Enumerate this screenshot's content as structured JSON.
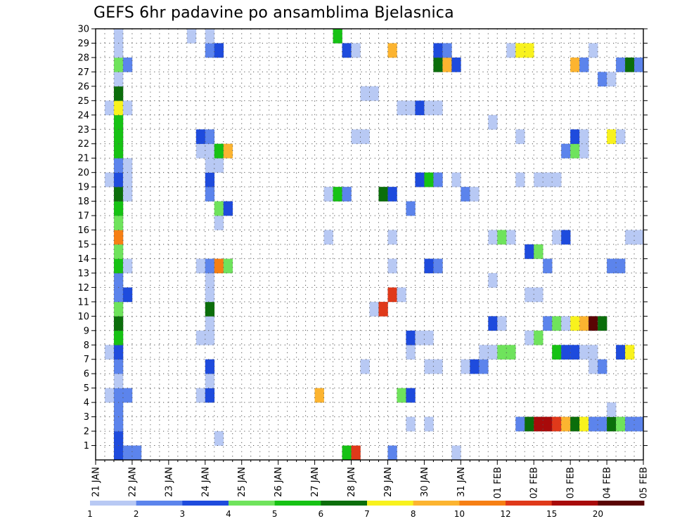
{
  "chart_data": {
    "type": "heatmap",
    "title": "GEFS 6hr padavine po ansamblima Bjelasnica",
    "x_ticks": [
      "21 JAN",
      "22 JAN",
      "23 JAN",
      "24 JAN",
      "25 JAN",
      "26 JAN",
      "27 JAN",
      "28 JAN",
      "29 JAN",
      "30 JAN",
      "31 JAN",
      "01 FEB",
      "02 FEB",
      "03 FEB",
      "04 FEB",
      "05 FEB"
    ],
    "x_range_steps": [
      0,
      60
    ],
    "x_step_hours": 6,
    "y_ticks": [
      1,
      2,
      3,
      4,
      5,
      6,
      7,
      8,
      9,
      10,
      11,
      12,
      13,
      14,
      15,
      16,
      17,
      18,
      19,
      20,
      21,
      22,
      23,
      24,
      25,
      26,
      27,
      28,
      29,
      30
    ],
    "y_range": [
      0,
      30
    ],
    "grid": "dotted",
    "colorbar": {
      "labels": [
        "1",
        "2",
        "3",
        "4",
        "5",
        "6",
        "7",
        "8",
        "10",
        "12",
        "15",
        "20"
      ],
      "colors": [
        "#b8c9f4",
        "#5c84ec",
        "#1e4bdd",
        "#6fe35c",
        "#16c214",
        "#0b6e0b",
        "#f8f21d",
        "#fcb430",
        "#f67f14",
        "#e0391a",
        "#a80a0a",
        "#5a0404"
      ]
    },
    "cells": [
      {
        "step": 2,
        "member": 0,
        "level": 2
      },
      {
        "step": 3,
        "member": 0,
        "level": 1
      },
      {
        "step": 4,
        "member": 0,
        "level": 1
      },
      {
        "step": 27,
        "member": 0,
        "level": 4
      },
      {
        "step": 28,
        "member": 0,
        "level": 9
      },
      {
        "step": 32,
        "member": 0,
        "level": 1
      },
      {
        "step": 39,
        "member": 0,
        "level": 0
      },
      {
        "step": 2,
        "member": 1,
        "level": 2
      },
      {
        "step": 13,
        "member": 1,
        "level": 0
      },
      {
        "step": 2,
        "member": 2,
        "level": 1
      },
      {
        "step": 34,
        "member": 2,
        "level": 0
      },
      {
        "step": 36,
        "member": 2,
        "level": 0
      },
      {
        "step": 46,
        "member": 2,
        "level": 1
      },
      {
        "step": 47,
        "member": 2,
        "level": 5
      },
      {
        "step": 48,
        "member": 2,
        "level": 10
      },
      {
        "step": 49,
        "member": 2,
        "level": 10
      },
      {
        "step": 50,
        "member": 2,
        "level": 9
      },
      {
        "step": 51,
        "member": 2,
        "level": 7
      },
      {
        "step": 52,
        "member": 2,
        "level": 5
      },
      {
        "step": 53,
        "member": 2,
        "level": 6
      },
      {
        "step": 54,
        "member": 2,
        "level": 1
      },
      {
        "step": 55,
        "member": 2,
        "level": 1
      },
      {
        "step": 56,
        "member": 2,
        "level": 5
      },
      {
        "step": 57,
        "member": 2,
        "level": 3
      },
      {
        "step": 58,
        "member": 2,
        "level": 1
      },
      {
        "step": 59,
        "member": 2,
        "level": 1
      },
      {
        "step": 2,
        "member": 3,
        "level": 1
      },
      {
        "step": 56,
        "member": 3,
        "level": 0
      },
      {
        "step": 1,
        "member": 4,
        "level": 0
      },
      {
        "step": 2,
        "member": 4,
        "level": 1
      },
      {
        "step": 3,
        "member": 4,
        "level": 1
      },
      {
        "step": 11,
        "member": 4,
        "level": 0
      },
      {
        "step": 12,
        "member": 4,
        "level": 2
      },
      {
        "step": 24,
        "member": 4,
        "level": 7
      },
      {
        "step": 33,
        "member": 4,
        "level": 3
      },
      {
        "step": 34,
        "member": 4,
        "level": 2
      },
      {
        "step": 2,
        "member": 5,
        "level": 0
      },
      {
        "step": 12,
        "member": 5,
        "level": 0
      },
      {
        "step": 2,
        "member": 6,
        "level": 1
      },
      {
        "step": 12,
        "member": 6,
        "level": 2
      },
      {
        "step": 29,
        "member": 6,
        "level": 0
      },
      {
        "step": 36,
        "member": 6,
        "level": 0
      },
      {
        "step": 37,
        "member": 6,
        "level": 0
      },
      {
        "step": 40,
        "member": 6,
        "level": 0
      },
      {
        "step": 41,
        "member": 6,
        "level": 2
      },
      {
        "step": 42,
        "member": 6,
        "level": 1
      },
      {
        "step": 54,
        "member": 6,
        "level": 0
      },
      {
        "step": 55,
        "member": 6,
        "level": 1
      },
      {
        "step": 1,
        "member": 7,
        "level": 0
      },
      {
        "step": 2,
        "member": 7,
        "level": 2
      },
      {
        "step": 34,
        "member": 7,
        "level": 0
      },
      {
        "step": 42,
        "member": 7,
        "level": 0
      },
      {
        "step": 43,
        "member": 7,
        "level": 0
      },
      {
        "step": 44,
        "member": 7,
        "level": 3
      },
      {
        "step": 45,
        "member": 7,
        "level": 3
      },
      {
        "step": 50,
        "member": 7,
        "level": 4
      },
      {
        "step": 51,
        "member": 7,
        "level": 2
      },
      {
        "step": 52,
        "member": 7,
        "level": 2
      },
      {
        "step": 53,
        "member": 7,
        "level": 0
      },
      {
        "step": 54,
        "member": 7,
        "level": 0
      },
      {
        "step": 57,
        "member": 7,
        "level": 2
      },
      {
        "step": 58,
        "member": 7,
        "level": 6
      },
      {
        "step": 2,
        "member": 8,
        "level": 4
      },
      {
        "step": 11,
        "member": 8,
        "level": 0
      },
      {
        "step": 12,
        "member": 8,
        "level": 0
      },
      {
        "step": 34,
        "member": 8,
        "level": 2
      },
      {
        "step": 35,
        "member": 8,
        "level": 0
      },
      {
        "step": 36,
        "member": 8,
        "level": 0
      },
      {
        "step": 47,
        "member": 8,
        "level": 0
      },
      {
        "step": 48,
        "member": 8,
        "level": 3
      },
      {
        "step": 2,
        "member": 9,
        "level": 5
      },
      {
        "step": 12,
        "member": 9,
        "level": 0
      },
      {
        "step": 43,
        "member": 9,
        "level": 2
      },
      {
        "step": 44,
        "member": 9,
        "level": 0
      },
      {
        "step": 49,
        "member": 9,
        "level": 1
      },
      {
        "step": 50,
        "member": 9,
        "level": 3
      },
      {
        "step": 51,
        "member": 9,
        "level": 0
      },
      {
        "step": 52,
        "member": 9,
        "level": 6
      },
      {
        "step": 53,
        "member": 9,
        "level": 7
      },
      {
        "step": 54,
        "member": 9,
        "level": 11
      },
      {
        "step": 55,
        "member": 9,
        "level": 5
      },
      {
        "step": 2,
        "member": 10,
        "level": 3
      },
      {
        "step": 12,
        "member": 10,
        "level": 5
      },
      {
        "step": 30,
        "member": 10,
        "level": 0
      },
      {
        "step": 31,
        "member": 10,
        "level": 9
      },
      {
        "step": 2,
        "member": 11,
        "level": 1
      },
      {
        "step": 3,
        "member": 11,
        "level": 2
      },
      {
        "step": 12,
        "member": 11,
        "level": 0
      },
      {
        "step": 32,
        "member": 11,
        "level": 9
      },
      {
        "step": 33,
        "member": 11,
        "level": 0
      },
      {
        "step": 47,
        "member": 11,
        "level": 0
      },
      {
        "step": 48,
        "member": 11,
        "level": 0
      },
      {
        "step": 2,
        "member": 12,
        "level": 1
      },
      {
        "step": 12,
        "member": 12,
        "level": 0
      },
      {
        "step": 43,
        "member": 12,
        "level": 0
      },
      {
        "step": 2,
        "member": 13,
        "level": 4
      },
      {
        "step": 3,
        "member": 13,
        "level": 0
      },
      {
        "step": 11,
        "member": 13,
        "level": 0
      },
      {
        "step": 12,
        "member": 13,
        "level": 1
      },
      {
        "step": 13,
        "member": 13,
        "level": 8
      },
      {
        "step": 14,
        "member": 13,
        "level": 3
      },
      {
        "step": 32,
        "member": 13,
        "level": 0
      },
      {
        "step": 36,
        "member": 13,
        "level": 2
      },
      {
        "step": 37,
        "member": 13,
        "level": 1
      },
      {
        "step": 49,
        "member": 13,
        "level": 1
      },
      {
        "step": 56,
        "member": 13,
        "level": 1
      },
      {
        "step": 57,
        "member": 13,
        "level": 1
      },
      {
        "step": 2,
        "member": 14,
        "level": 3
      },
      {
        "step": 47,
        "member": 14,
        "level": 2
      },
      {
        "step": 48,
        "member": 14,
        "level": 3
      },
      {
        "step": 2,
        "member": 15,
        "level": 8
      },
      {
        "step": 25,
        "member": 15,
        "level": 0
      },
      {
        "step": 32,
        "member": 15,
        "level": 0
      },
      {
        "step": 43,
        "member": 15,
        "level": 0
      },
      {
        "step": 44,
        "member": 15,
        "level": 3
      },
      {
        "step": 45,
        "member": 15,
        "level": 0
      },
      {
        "step": 50,
        "member": 15,
        "level": 0
      },
      {
        "step": 51,
        "member": 15,
        "level": 2
      },
      {
        "step": 58,
        "member": 15,
        "level": 0
      },
      {
        "step": 59,
        "member": 15,
        "level": 0
      },
      {
        "step": 2,
        "member": 16,
        "level": 3
      },
      {
        "step": 13,
        "member": 16,
        "level": 0
      },
      {
        "step": 2,
        "member": 17,
        "level": 4
      },
      {
        "step": 13,
        "member": 17,
        "level": 3
      },
      {
        "step": 14,
        "member": 17,
        "level": 2
      },
      {
        "step": 34,
        "member": 17,
        "level": 1
      },
      {
        "step": 2,
        "member": 18,
        "level": 5
      },
      {
        "step": 3,
        "member": 18,
        "level": 0
      },
      {
        "step": 12,
        "member": 18,
        "level": 1
      },
      {
        "step": 25,
        "member": 18,
        "level": 0
      },
      {
        "step": 26,
        "member": 18,
        "level": 4
      },
      {
        "step": 27,
        "member": 18,
        "level": 1
      },
      {
        "step": 31,
        "member": 18,
        "level": 5
      },
      {
        "step": 32,
        "member": 18,
        "level": 2
      },
      {
        "step": 40,
        "member": 18,
        "level": 1
      },
      {
        "step": 41,
        "member": 18,
        "level": 0
      },
      {
        "step": 1,
        "member": 19,
        "level": 0
      },
      {
        "step": 2,
        "member": 19,
        "level": 2
      },
      {
        "step": 3,
        "member": 19,
        "level": 0
      },
      {
        "step": 12,
        "member": 19,
        "level": 2
      },
      {
        "step": 35,
        "member": 19,
        "level": 2
      },
      {
        "step": 36,
        "member": 19,
        "level": 4
      },
      {
        "step": 37,
        "member": 19,
        "level": 1
      },
      {
        "step": 39,
        "member": 19,
        "level": 0
      },
      {
        "step": 46,
        "member": 19,
        "level": 0
      },
      {
        "step": 48,
        "member": 19,
        "level": 0
      },
      {
        "step": 49,
        "member": 19,
        "level": 0
      },
      {
        "step": 50,
        "member": 19,
        "level": 0
      },
      {
        "step": 2,
        "member": 20,
        "level": 1
      },
      {
        "step": 3,
        "member": 20,
        "level": 0
      },
      {
        "step": 12,
        "member": 20,
        "level": 0
      },
      {
        "step": 13,
        "member": 20,
        "level": 0
      },
      {
        "step": 2,
        "member": 21,
        "level": 4
      },
      {
        "step": 11,
        "member": 21,
        "level": 0
      },
      {
        "step": 12,
        "member": 21,
        "level": 0
      },
      {
        "step": 13,
        "member": 21,
        "level": 4
      },
      {
        "step": 14,
        "member": 21,
        "level": 7
      },
      {
        "step": 51,
        "member": 21,
        "level": 1
      },
      {
        "step": 52,
        "member": 21,
        "level": 3
      },
      {
        "step": 53,
        "member": 21,
        "level": 0
      },
      {
        "step": 2,
        "member": 22,
        "level": 4
      },
      {
        "step": 11,
        "member": 22,
        "level": 2
      },
      {
        "step": 12,
        "member": 22,
        "level": 1
      },
      {
        "step": 28,
        "member": 22,
        "level": 0
      },
      {
        "step": 29,
        "member": 22,
        "level": 0
      },
      {
        "step": 46,
        "member": 22,
        "level": 0
      },
      {
        "step": 52,
        "member": 22,
        "level": 2
      },
      {
        "step": 53,
        "member": 22,
        "level": 0
      },
      {
        "step": 56,
        "member": 22,
        "level": 6
      },
      {
        "step": 57,
        "member": 22,
        "level": 0
      },
      {
        "step": 2,
        "member": 23,
        "level": 4
      },
      {
        "step": 43,
        "member": 23,
        "level": 0
      },
      {
        "step": 1,
        "member": 24,
        "level": 0
      },
      {
        "step": 2,
        "member": 24,
        "level": 6
      },
      {
        "step": 3,
        "member": 24,
        "level": 0
      },
      {
        "step": 33,
        "member": 24,
        "level": 0
      },
      {
        "step": 34,
        "member": 24,
        "level": 0
      },
      {
        "step": 35,
        "member": 24,
        "level": 2
      },
      {
        "step": 36,
        "member": 24,
        "level": 0
      },
      {
        "step": 37,
        "member": 24,
        "level": 0
      },
      {
        "step": 2,
        "member": 25,
        "level": 5
      },
      {
        "step": 29,
        "member": 25,
        "level": 0
      },
      {
        "step": 30,
        "member": 25,
        "level": 0
      },
      {
        "step": 2,
        "member": 26,
        "level": 0
      },
      {
        "step": 55,
        "member": 26,
        "level": 1
      },
      {
        "step": 56,
        "member": 26,
        "level": 0
      },
      {
        "step": 2,
        "member": 27,
        "level": 3
      },
      {
        "step": 3,
        "member": 27,
        "level": 1
      },
      {
        "step": 37,
        "member": 27,
        "level": 5
      },
      {
        "step": 38,
        "member": 27,
        "level": 7
      },
      {
        "step": 39,
        "member": 27,
        "level": 2
      },
      {
        "step": 52,
        "member": 27,
        "level": 7
      },
      {
        "step": 53,
        "member": 27,
        "level": 1
      },
      {
        "step": 57,
        "member": 27,
        "level": 1
      },
      {
        "step": 58,
        "member": 27,
        "level": 5
      },
      {
        "step": 59,
        "member": 27,
        "level": 1
      },
      {
        "step": 2,
        "member": 28,
        "level": 0
      },
      {
        "step": 12,
        "member": 28,
        "level": 1
      },
      {
        "step": 13,
        "member": 28,
        "level": 2
      },
      {
        "step": 27,
        "member": 28,
        "level": 2
      },
      {
        "step": 28,
        "member": 28,
        "level": 0
      },
      {
        "step": 32,
        "member": 28,
        "level": 7
      },
      {
        "step": 37,
        "member": 28,
        "level": 2
      },
      {
        "step": 38,
        "member": 28,
        "level": 1
      },
      {
        "step": 45,
        "member": 28,
        "level": 0
      },
      {
        "step": 46,
        "member": 28,
        "level": 6
      },
      {
        "step": 47,
        "member": 28,
        "level": 6
      },
      {
        "step": 54,
        "member": 28,
        "level": 0
      },
      {
        "step": 2,
        "member": 29,
        "level": 0
      },
      {
        "step": 10,
        "member": 29,
        "level": 0
      },
      {
        "step": 12,
        "member": 29,
        "level": 0
      },
      {
        "step": 26,
        "member": 29,
        "level": 4
      }
    ]
  }
}
